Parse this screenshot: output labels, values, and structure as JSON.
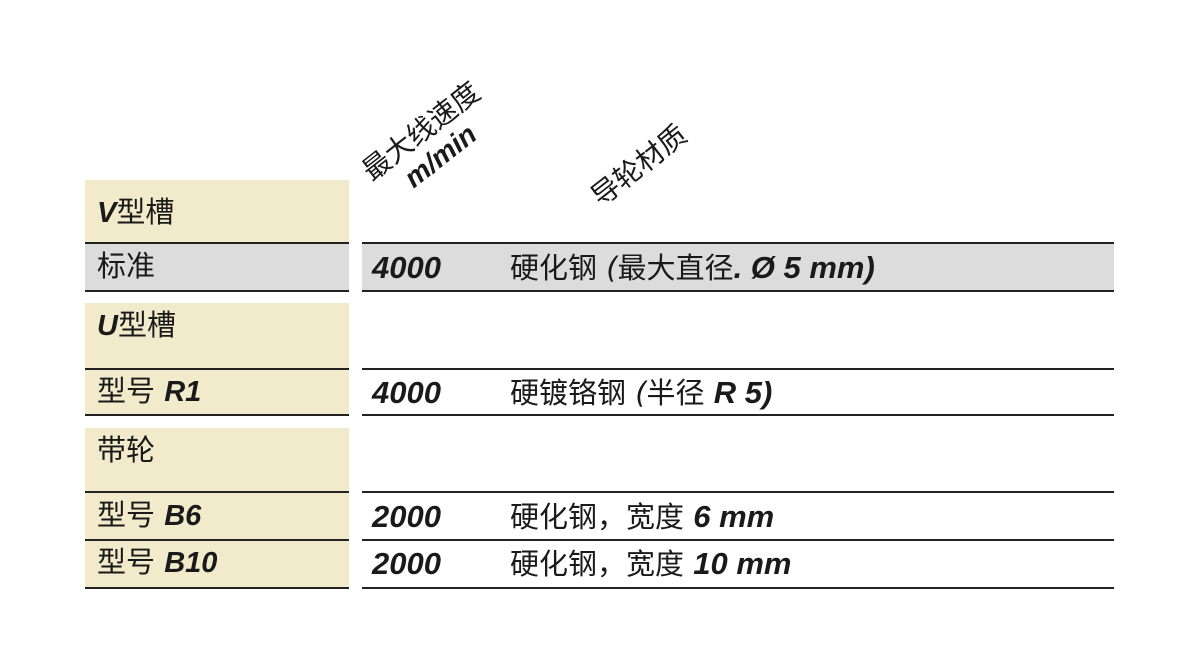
{
  "headers": {
    "speed_line1": "最大线速度",
    "speed_line2": "m/min",
    "material": "导轮材质"
  },
  "colors": {
    "group_bg": "#f1ebcb",
    "highlight_row_bg": "#dcdcdc"
  },
  "groups": [
    {
      "title_prefix": "V",
      "title": "型槽"
    },
    {
      "title_prefix": "U",
      "title": "型槽"
    },
    {
      "title_prefix": "",
      "title": "带轮"
    }
  ],
  "rows": [
    {
      "label": "标准",
      "model": "",
      "speed": "4000",
      "mat": [
        "硬化钢 ",
        "(",
        "最大直径",
        ". Ø 5 mm)"
      ]
    },
    {
      "label": "型号 ",
      "model": "R1",
      "speed": "4000",
      "mat": [
        "硬镀铬钢 ",
        "(",
        "半径 ",
        "R 5)"
      ]
    },
    {
      "label": "型号 ",
      "model": "B6",
      "speed": "2000",
      "mat": [
        "硬化钢，宽度 ",
        "",
        "",
        "6 mm"
      ]
    },
    {
      "label": "型号 ",
      "model": "B10",
      "speed": "2000",
      "mat": [
        "硬化钢，宽度 ",
        "",
        "",
        "10 mm"
      ]
    }
  ]
}
